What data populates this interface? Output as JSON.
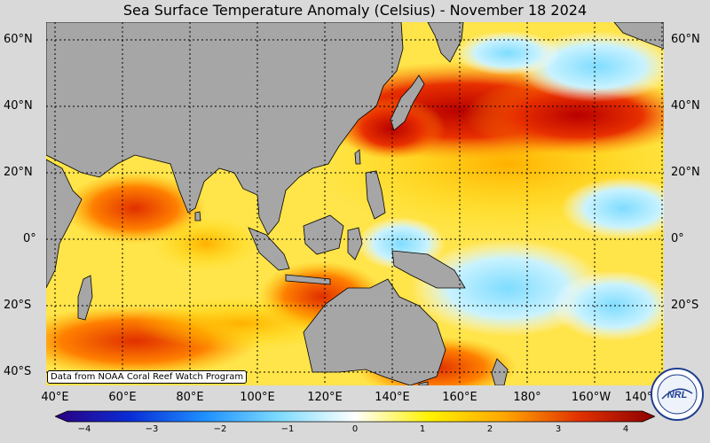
{
  "title": "Sea Surface Temperature Anomaly (Celsius) - November 18 2024",
  "credit": "Data from NOAA Coral Reef Watch Program",
  "logo_text": "NRL LAB",
  "lat_labels": [
    "60°N",
    "40°N",
    "20°N",
    "0°",
    "20°S",
    "40°S"
  ],
  "lon_labels": [
    "40°E",
    "60°E",
    "80°E",
    "100°E",
    "120°E",
    "140°E",
    "160°E",
    "180°",
    "160°W",
    "140°W"
  ],
  "colorbar": {
    "min": -4,
    "max": 4,
    "tick_labels": [
      "−4",
      "−3",
      "−2",
      "−1",
      "0",
      "1",
      "2",
      "3",
      "4"
    ],
    "colors": [
      "#2b0080",
      "#0a2dd6",
      "#1e90ff",
      "#7fdcff",
      "#ffffff",
      "#fff200",
      "#ffa500",
      "#e03000",
      "#8b0000"
    ]
  },
  "colors": {
    "land": "#a6a6a6",
    "background": "#d9d9d9",
    "grid": "#000000"
  }
}
